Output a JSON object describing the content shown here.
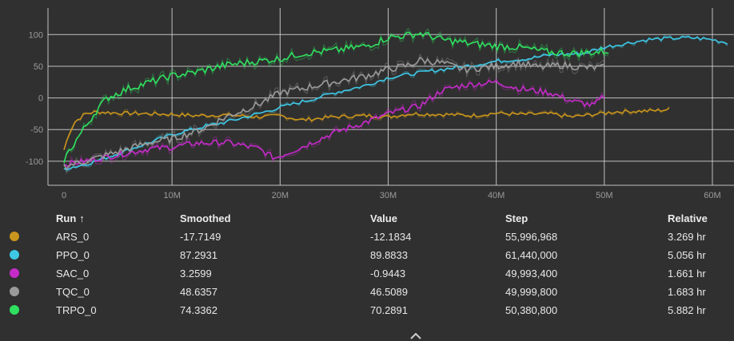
{
  "chart_data": {
    "type": "line",
    "x_ticks": [
      "0",
      "10M",
      "20M",
      "30M",
      "40M",
      "50M",
      "60M"
    ],
    "x_tick_values": [
      0,
      10000000,
      20000000,
      30000000,
      40000000,
      50000000,
      60000000
    ],
    "y_ticks": [
      "100",
      "50",
      "0",
      "-50",
      "-100"
    ],
    "y_tick_values": [
      100,
      50,
      0,
      -50,
      -100
    ],
    "xlim": [
      0,
      62000000
    ],
    "ylim": [
      -138,
      142
    ],
    "grid": true,
    "series": [
      {
        "name": "ARS_0",
        "color": "#c9951c",
        "x": [
          0,
          500000,
          1000000,
          2000000,
          3000000,
          5000000,
          8000000,
          10000000,
          12000000,
          15000000,
          18000000,
          20000000,
          22000000,
          25000000,
          28000000,
          30000000,
          32000000,
          35000000,
          38000000,
          40000000,
          42000000,
          45000000,
          47000000,
          49000000,
          51000000,
          53000000,
          55000000,
          56000000
        ],
        "y": [
          -82,
          -55,
          -38,
          -25,
          -22,
          -24,
          -25,
          -26,
          -28,
          -27,
          -30,
          -28,
          -35,
          -30,
          -28,
          -30,
          -25,
          -26,
          -28,
          -24,
          -26,
          -25,
          -30,
          -26,
          -22,
          -21,
          -20,
          -18
        ]
      },
      {
        "name": "PPO_0",
        "color": "#3ec8e6",
        "x": [
          0,
          2000000,
          5000000,
          8000000,
          10000000,
          13000000,
          15000000,
          18000000,
          20000000,
          23000000,
          25000000,
          28000000,
          30000000,
          33000000,
          35000000,
          38000000,
          40000000,
          43000000,
          45000000,
          48000000,
          50000000,
          52000000,
          54000000,
          56000000,
          58000000,
          60000000,
          61400000
        ],
        "y": [
          -112,
          -105,
          -88,
          -70,
          -58,
          -45,
          -38,
          -25,
          -15,
          -2,
          8,
          20,
          32,
          40,
          45,
          52,
          58,
          62,
          68,
          70,
          80,
          86,
          92,
          94,
          95,
          92,
          87
        ]
      },
      {
        "name": "SAC_0",
        "color": "#c52bc9",
        "x": [
          0,
          2000000,
          5000000,
          8000000,
          10000000,
          12000000,
          15000000,
          18000000,
          19500000,
          21000000,
          23000000,
          25000000,
          28000000,
          30000000,
          33000000,
          35000000,
          37000000,
          40000000,
          42000000,
          45000000,
          47000000,
          49000000,
          50000000
        ],
        "y": [
          -105,
          -100,
          -90,
          -80,
          -78,
          -72,
          -70,
          -80,
          -95,
          -85,
          -70,
          -55,
          -38,
          -25,
          -12,
          12,
          20,
          25,
          15,
          8,
          -5,
          -12,
          3
        ]
      },
      {
        "name": "TQC_0",
        "color": "#9a9a9a",
        "x": [
          0,
          2000000,
          5000000,
          8000000,
          10000000,
          13000000,
          15000000,
          18000000,
          20000000,
          22000000,
          25000000,
          28000000,
          30000000,
          32000000,
          33000000,
          35000000,
          37000000,
          40000000,
          42000000,
          44000000,
          46000000,
          48000000,
          50000000
        ],
        "y": [
          -108,
          -100,
          -85,
          -70,
          -65,
          -48,
          -30,
          -10,
          8,
          15,
          25,
          35,
          45,
          52,
          60,
          55,
          45,
          50,
          55,
          48,
          52,
          48,
          48
        ]
      },
      {
        "name": "TRPO_0",
        "color": "#2fe05f",
        "x": [
          0,
          1000000,
          2000000,
          3000000,
          4000000,
          6000000,
          8000000,
          10000000,
          12000000,
          15000000,
          18000000,
          20000000,
          22000000,
          25000000,
          28000000,
          30000000,
          33000000,
          35000000,
          38000000,
          40000000,
          42000000,
          45000000,
          47000000,
          49000000,
          50400000
        ],
        "y": [
          -98,
          -70,
          -45,
          -20,
          0,
          15,
          25,
          35,
          40,
          52,
          58,
          62,
          70,
          75,
          82,
          95,
          102,
          92,
          85,
          82,
          80,
          72,
          70,
          72,
          74
        ]
      }
    ]
  },
  "table": {
    "headers": {
      "run": "Run",
      "sort_indicator": "↑",
      "smoothed": "Smoothed",
      "value": "Value",
      "step": "Step",
      "relative": "Relative"
    },
    "rows": [
      {
        "run": "ARS_0",
        "color": "#c9951c",
        "smoothed": "-17.7149",
        "value": "-12.1834",
        "step": "55,996,968",
        "relative": "3.269 hr"
      },
      {
        "run": "PPO_0",
        "color": "#3ec8e6",
        "smoothed": "87.2931",
        "value": "89.8833",
        "step": "61,440,000",
        "relative": "5.056 hr"
      },
      {
        "run": "SAC_0",
        "color": "#c52bc9",
        "smoothed": "3.2599",
        "value": "-0.9443",
        "step": "49,993,400",
        "relative": "1.661 hr"
      },
      {
        "run": "TQC_0",
        "color": "#9a9a9a",
        "smoothed": "48.6357",
        "value": "46.5089",
        "step": "49,999,800",
        "relative": "1.683 hr"
      },
      {
        "run": "TRPO_0",
        "color": "#2fe05f",
        "smoothed": "74.3362",
        "value": "70.2891",
        "step": "50,380,800",
        "relative": "5.882 hr"
      }
    ]
  },
  "icons": {
    "expand": "chevron-up-icon"
  }
}
